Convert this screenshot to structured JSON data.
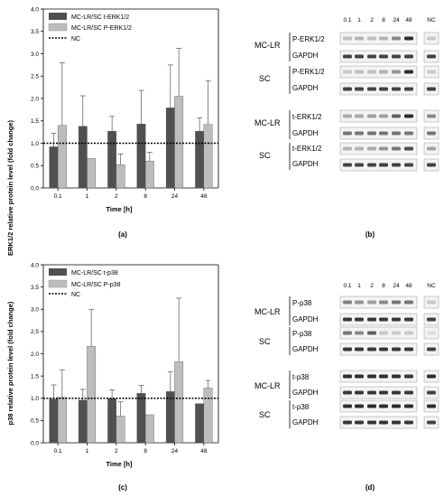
{
  "chart_data": [
    {
      "type": "bar",
      "categories": [
        "0.1",
        "1",
        "2",
        "8",
        "24",
        "48"
      ],
      "series": [
        {
          "name": "MC-LR/SC t-ERK1/2",
          "color": "#505050",
          "values": [
            0.92,
            1.38,
            1.27,
            1.43,
            1.79,
            1.27
          ],
          "errors": [
            0.3,
            0.68,
            0.33,
            0.75,
            0.96,
            0.3
          ]
        },
        {
          "name": "MC-LR/SC P-ERK1/2",
          "color": "#bdbdbd",
          "values": [
            1.4,
            0.66,
            0.52,
            0.6,
            2.05,
            1.42
          ],
          "errors": [
            1.4,
            0.0,
            0.24,
            0.2,
            1.07,
            0.98
          ]
        }
      ],
      "reference": {
        "name": "NC",
        "value": 1.0
      },
      "xlabel": "Time [h]",
      "ylabel": "ERK1/2 relative protein level (fold change)",
      "ylim": [
        0,
        4.0
      ],
      "yticks": [
        "0.0",
        "0.5",
        "1.0",
        "1.5",
        "2.0",
        "2.5",
        "3.0",
        "3.5",
        "4.0"
      ],
      "legend": "top-left",
      "caption": "(a)"
    },
    {
      "type": "bar",
      "categories": [
        "0.1",
        "1",
        "2",
        "8",
        "24",
        "48"
      ],
      "series": [
        {
          "name": "MC-LR/SC t-p38",
          "color": "#505050",
          "values": [
            0.98,
            0.96,
            0.99,
            1.11,
            1.15,
            0.88
          ],
          "errors": [
            0.32,
            0.24,
            0.2,
            0.18,
            0.45,
            0.0
          ]
        },
        {
          "name": "MC-LR/SC P-p38",
          "color": "#bdbdbd",
          "values": [
            1.02,
            2.17,
            0.6,
            0.63,
            1.82,
            1.23
          ],
          "errors": [
            0.62,
            0.83,
            0.32,
            0.0,
            1.43,
            0.17
          ]
        }
      ],
      "reference": {
        "name": "NC",
        "value": 1.0
      },
      "xlabel": "Time [h]",
      "ylabel": "p38 relative protein level (fold change)",
      "ylim": [
        0,
        4.0
      ],
      "yticks": [
        "0.0",
        "0.5",
        "1.0",
        "1.5",
        "2.0",
        "2.5",
        "3.0",
        "3.5",
        "4.0"
      ],
      "legend": "top-left",
      "caption": "(c)"
    }
  ],
  "blots_b": {
    "timepoints": [
      "0.1",
      "1",
      "2",
      "8",
      "24",
      "48"
    ],
    "nc_label": "NC",
    "groups": [
      {
        "label": "MC-LR",
        "rows": [
          "P-ERK1/2",
          "GAPDH"
        ]
      },
      {
        "label": "SC",
        "rows": [
          "P-ERK1/2",
          "GAPDH"
        ]
      },
      {
        "label": "MC-LR",
        "rows": [
          "t-ERK1/2",
          "GAPDH"
        ]
      },
      {
        "label": "SC",
        "rows": [
          "t-ERK1/2",
          "GAPDH"
        ]
      }
    ],
    "caption": "(b)"
  },
  "blots_d": {
    "timepoints": [
      "0.1",
      "1",
      "2",
      "8",
      "24",
      "48"
    ],
    "nc_label": "NC",
    "groups": [
      {
        "label": "MC-LR",
        "rows": [
          "P-p38",
          "GAPDH"
        ]
      },
      {
        "label": "SC",
        "rows": [
          "P-p38",
          "GAPDH"
        ]
      },
      {
        "label": "MC-LR",
        "rows": [
          "t-p38",
          "GAPDH"
        ]
      },
      {
        "label": "SC",
        "rows": [
          "t-p38",
          "GAPDH"
        ]
      }
    ],
    "caption": "(d)"
  }
}
